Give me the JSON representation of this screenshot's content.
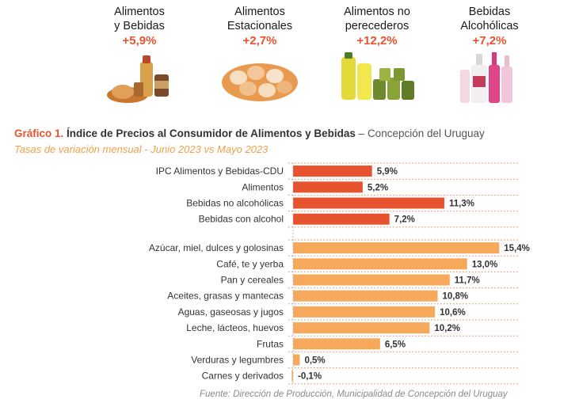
{
  "cards": [
    {
      "title": "Alimentos\ny Bebidas",
      "value": "+5,9%",
      "icon": "food-basket-icon"
    },
    {
      "title": "Alimentos\nEstacionales",
      "value": "+2,7%",
      "icon": "eggs-basket-icon"
    },
    {
      "title": "Alimentos no\nperecederos",
      "value": "+12,2%",
      "icon": "oil-cans-icon"
    },
    {
      "title": "Bebidas\nAlcohólicas",
      "value": "+7,2%",
      "icon": "liquor-bottles-icon"
    }
  ],
  "chart_title": {
    "label": "Gráfico 1.",
    "title": "Índice de Precios al Consumidor de Alimentos y Bebidas",
    "dash": "–",
    "location": "Concepción del Uruguay"
  },
  "chart_subtitle": "Tasas de variación mensual - Junio 2023 vs Mayo 2023",
  "source_note": "Fuente: Dirección de Producción, Municipalidad de Concepción del Uruguay",
  "colors": {
    "accent": "#e8532f",
    "group1_bar": "#e8532f",
    "group2_bar": "#f6a95a",
    "subtitle": "#f0a04b",
    "gridline": "#e8532f"
  },
  "chart_data": {
    "type": "bar",
    "orientation": "horizontal",
    "grid": true,
    "groups": [
      {
        "categories": [
          "IPC Alimentos y Bebidas-CDU",
          "Alimentos",
          "Bebidas no alcohólicas",
          "Bebidas con alcohol"
        ],
        "values": [
          5.9,
          5.2,
          11.3,
          7.2
        ],
        "labels": [
          "5,9%",
          "5,2%",
          "11,3%",
          "7,2%"
        ],
        "color": "#e8532f"
      },
      {
        "categories": [
          "Azúcar, miel, dulces y golosinas",
          "Café, te y yerba",
          "Pan y cereales",
          "Aceites, grasas y mantecas",
          "Aguas, gaseosas y jugos",
          "Leche, lácteos, huevos",
          "Frutas",
          "Verduras y legumbres",
          "Carnes y derivados"
        ],
        "values": [
          15.4,
          13.0,
          11.7,
          10.8,
          10.6,
          10.2,
          6.5,
          0.5,
          -0.1
        ],
        "labels": [
          "15,4%",
          "13,0%",
          "11,7%",
          "10,8%",
          "10,6%",
          "10,2%",
          "6,5%",
          "0,5%",
          "-0,1%"
        ],
        "color": "#f6a95a"
      }
    ]
  }
}
